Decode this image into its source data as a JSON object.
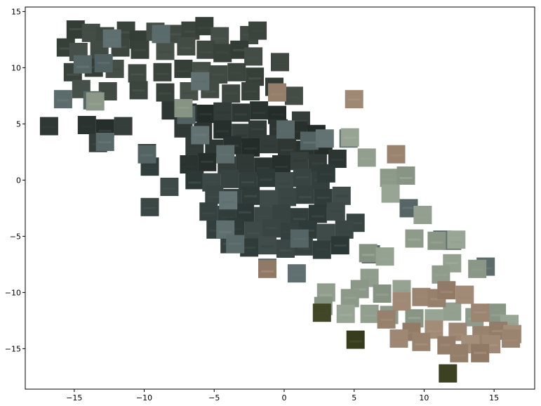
{
  "chart_data": {
    "type": "scatter",
    "title": "",
    "xlabel": "",
    "ylabel": "",
    "xlim": [
      -18.5,
      17.9
    ],
    "ylim": [
      -18.6,
      15.4
    ],
    "grid": false,
    "legend": "none",
    "xticks": [
      -15,
      -10,
      -5,
      0,
      5,
      10,
      15
    ],
    "yticks": [
      15,
      10,
      5,
      0,
      -5,
      -10,
      -15
    ],
    "xtick_labels": [
      "−15",
      "−10",
      "−5",
      "0",
      "5",
      "10",
      "15"
    ],
    "ytick_labels": [
      "15",
      "10",
      "5",
      "0",
      "−5",
      "−10",
      "−15"
    ],
    "marker": "satellite image tile",
    "point_groups": [
      {
        "name": "",
        "color": "#3d4740",
        "points": [
          [
            -14.9,
            13.4
          ],
          [
            -13.8,
            13.1
          ],
          [
            -12.8,
            12.8
          ],
          [
            -11.3,
            13.3
          ],
          [
            -10.4,
            12.5
          ],
          [
            -9.2,
            13.2
          ],
          [
            -7.8,
            13.0
          ],
          [
            -6.7,
            13.3
          ],
          [
            -5.7,
            13.7
          ],
          [
            -4.6,
            12.8
          ],
          [
            -2.5,
            12.9
          ],
          [
            -1.9,
            13.3
          ],
          [
            -15.6,
            11.8
          ],
          [
            -14.7,
            11.4
          ],
          [
            -13.2,
            11.6
          ],
          [
            -11.7,
            11.8
          ],
          [
            -10.3,
            11.6
          ],
          [
            -8.5,
            11.5
          ],
          [
            -7.0,
            11.9
          ],
          [
            -5.6,
            11.6
          ],
          [
            -4.4,
            11.3
          ],
          [
            -3.2,
            11.6
          ],
          [
            -2.2,
            11.0
          ],
          [
            -0.3,
            10.5
          ],
          [
            -15.1,
            9.6
          ],
          [
            -13.6,
            10.0
          ],
          [
            -12.1,
            9.9
          ],
          [
            -10.5,
            9.5
          ],
          [
            -8.7,
            9.6
          ],
          [
            -7.2,
            9.9
          ],
          [
            -5.9,
            9.7
          ],
          [
            -4.7,
            9.4
          ],
          [
            -3.4,
            9.6
          ],
          [
            -2.1,
            9.2
          ],
          [
            -14.5,
            8.1
          ],
          [
            -12.6,
            7.9
          ],
          [
            -10.4,
            8.0
          ],
          [
            -8.5,
            7.8
          ],
          [
            -6.8,
            7.9
          ],
          [
            -5.3,
            8.1
          ],
          [
            -3.8,
            7.7
          ],
          [
            -2.4,
            7.9
          ],
          [
            -0.7,
            8.3
          ],
          [
            0.7,
            7.5
          ]
        ]
      },
      {
        "name": "",
        "color": "#2d3532",
        "points": [
          [
            -8.1,
            6.2
          ],
          [
            -6.9,
            6.0
          ],
          [
            -5.6,
            5.9
          ],
          [
            -4.4,
            6.1
          ],
          [
            -3.1,
            6.0
          ],
          [
            -1.8,
            6.2
          ],
          [
            -0.5,
            5.8
          ],
          [
            1.2,
            5.3
          ],
          [
            -16.8,
            4.8
          ],
          [
            -14.1,
            4.9
          ],
          [
            -12.8,
            4.6
          ],
          [
            -11.5,
            4.8
          ],
          [
            -7.2,
            4.6
          ],
          [
            -5.8,
            4.3
          ],
          [
            -4.4,
            4.5
          ],
          [
            -3.1,
            4.2
          ],
          [
            -1.9,
            4.5
          ],
          [
            -0.4,
            4.6
          ],
          [
            1.0,
            4.4
          ],
          [
            2.3,
            4.1
          ],
          [
            -6.4,
            3.0
          ],
          [
            -5.0,
            2.8
          ],
          [
            -3.7,
            3.1
          ],
          [
            -2.4,
            2.9
          ],
          [
            -1.1,
            3.2
          ],
          [
            0.2,
            2.9
          ],
          [
            1.5,
            2.7
          ],
          [
            2.8,
            3.1
          ],
          [
            -13.3,
            3.3
          ],
          [
            -9.8,
            2.4
          ],
          [
            -6.8,
            1.4
          ],
          [
            -5.5,
            1.6
          ],
          [
            -4.1,
            1.3
          ],
          [
            -2.8,
            1.5
          ],
          [
            -1.5,
            1.2
          ],
          [
            -0.2,
            1.4
          ],
          [
            1.1,
            1.7
          ],
          [
            2.4,
            1.5
          ],
          [
            3.8,
            1.9
          ]
        ]
      },
      {
        "name": "",
        "color": "#36423f",
        "points": [
          [
            -9.6,
            1.2
          ],
          [
            -6.4,
            0.0
          ],
          [
            -5.2,
            -0.2
          ],
          [
            -3.9,
            0.1
          ],
          [
            -2.6,
            -0.1
          ],
          [
            -1.3,
            0.2
          ],
          [
            0.0,
            -0.1
          ],
          [
            1.3,
            0.2
          ],
          [
            2.6,
            0.0
          ],
          [
            3.0,
            0.6
          ],
          [
            -8.2,
            -0.6
          ],
          [
            -5.0,
            -1.3
          ],
          [
            -3.7,
            -1.6
          ],
          [
            -2.4,
            -1.4
          ],
          [
            -1.1,
            -1.7
          ],
          [
            0.2,
            -1.5
          ],
          [
            1.5,
            -1.3
          ],
          [
            2.8,
            -1.6
          ],
          [
            4.1,
            -1.4
          ],
          [
            -9.6,
            -2.4
          ],
          [
            -5.4,
            -2.8
          ],
          [
            -4.1,
            -3.1
          ],
          [
            -2.8,
            -2.9
          ],
          [
            -1.5,
            -3.2
          ],
          [
            -0.2,
            -3.0
          ],
          [
            1.1,
            -3.3
          ],
          [
            2.4,
            -3.0
          ],
          [
            3.7,
            -2.8
          ],
          [
            5.1,
            -3.8
          ],
          [
            -4.9,
            -4.4
          ],
          [
            -3.5,
            -4.2
          ],
          [
            -2.2,
            -4.5
          ],
          [
            -0.9,
            -4.3
          ],
          [
            0.4,
            -4.6
          ],
          [
            1.7,
            -4.4
          ],
          [
            3.0,
            -4.7
          ],
          [
            4.3,
            -4.4
          ],
          [
            -3.9,
            -5.7
          ],
          [
            -2.5,
            -6.0
          ],
          [
            -1.2,
            -5.8
          ],
          [
            0.1,
            -6.1
          ],
          [
            1.4,
            -5.9
          ],
          [
            2.7,
            -6.2
          ],
          [
            4.0,
            -5.8
          ]
        ]
      },
      {
        "name": "",
        "color": "#5a6a6a",
        "points": [
          [
            -12.3,
            12.6
          ],
          [
            -8.8,
            13.0
          ],
          [
            -14.4,
            10.3
          ],
          [
            -12.9,
            10.4
          ],
          [
            -6.0,
            8.8
          ],
          [
            -15.8,
            7.2
          ],
          [
            -13.7,
            7.1
          ],
          [
            -7.0,
            5.8
          ],
          [
            -6.0,
            4.0
          ],
          [
            -4.2,
            2.3
          ],
          [
            0.1,
            4.5
          ],
          [
            1.8,
            3.5
          ],
          [
            2.9,
            3.7
          ],
          [
            4.6,
            3.7
          ],
          [
            -12.8,
            3.4
          ],
          [
            -9.8,
            2.3
          ],
          [
            -4.0,
            -1.8
          ],
          [
            -4.2,
            -4.4
          ],
          [
            -3.5,
            -5.7
          ],
          [
            1.1,
            -5.2
          ],
          [
            -1.2,
            -7.8
          ],
          [
            0.9,
            -8.3
          ],
          [
            6.2,
            -6.6
          ],
          [
            8.9,
            -2.5
          ],
          [
            11.3,
            -5.3
          ],
          [
            12.0,
            -5.4
          ],
          [
            14.4,
            -7.7
          ]
        ]
      },
      {
        "name": "",
        "color": "#8f9c8c",
        "points": [
          [
            -13.5,
            7.0
          ],
          [
            -7.2,
            6.4
          ],
          [
            4.7,
            3.8
          ],
          [
            5.9,
            2.0
          ],
          [
            7.5,
            0.2
          ],
          [
            8.7,
            0.4
          ],
          [
            7.6,
            -1.2
          ],
          [
            9.9,
            -3.1
          ],
          [
            9.3,
            -5.2
          ],
          [
            10.9,
            -5.4
          ],
          [
            12.3,
            -5.3
          ],
          [
            12.0,
            -7.4
          ],
          [
            11.2,
            -8.4
          ],
          [
            13.8,
            -7.9
          ],
          [
            6.0,
            -6.5
          ],
          [
            7.2,
            -6.8
          ],
          [
            6.1,
            -8.7
          ],
          [
            5.4,
            -9.7
          ],
          [
            7.0,
            -10.1
          ],
          [
            8.4,
            -9.7
          ],
          [
            3.0,
            -10.0
          ],
          [
            4.7,
            -10.5
          ],
          [
            2.8,
            -11.2
          ],
          [
            4.4,
            -11.9
          ],
          [
            6.1,
            -11.9
          ],
          [
            7.5,
            -12.0
          ],
          [
            9.3,
            -12.3
          ],
          [
            10.7,
            -12.3
          ],
          [
            12.0,
            -11.7
          ],
          [
            13.6,
            -12.2
          ],
          [
            15.2,
            -11.8
          ],
          [
            16.1,
            -12.8
          ]
        ]
      },
      {
        "name": "",
        "color": "#9a8470",
        "points": [
          [
            5.0,
            7.2
          ],
          [
            8.0,
            2.3
          ],
          [
            -0.5,
            7.8
          ],
          [
            -1.2,
            -7.9
          ],
          [
            8.4,
            -10.8
          ],
          [
            9.8,
            -10.4
          ],
          [
            10.9,
            -10.5
          ],
          [
            11.6,
            -9.8
          ],
          [
            12.9,
            -10.2
          ],
          [
            14.0,
            -11.8
          ],
          [
            7.3,
            -12.4
          ],
          [
            9.1,
            -13.5
          ],
          [
            10.7,
            -13.3
          ],
          [
            12.4,
            -13.5
          ],
          [
            14.1,
            -13.8
          ],
          [
            15.3,
            -13.4
          ],
          [
            16.3,
            -13.7
          ],
          [
            8.2,
            -14.1
          ],
          [
            9.8,
            -14.4
          ],
          [
            11.6,
            -14.7
          ],
          [
            13.3,
            -14.6
          ],
          [
            14.8,
            -14.6
          ],
          [
            16.2,
            -14.1
          ],
          [
            12.5,
            -15.4
          ],
          [
            14.0,
            -15.4
          ]
        ]
      },
      {
        "name": "",
        "color": "#3a4020",
        "points": [
          [
            2.7,
            -11.8
          ],
          [
            11.7,
            -17.2
          ],
          [
            5.1,
            -14.2
          ]
        ]
      }
    ]
  }
}
